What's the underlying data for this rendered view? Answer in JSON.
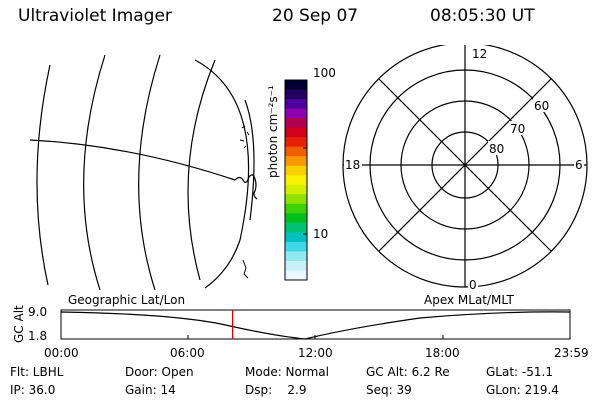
{
  "header": {
    "title": "Ultraviolet Imager",
    "date": "20 Sep 07",
    "time": "08:05:30 UT"
  },
  "colorbar": {
    "unit_label": "photon cm⁻²s⁻¹",
    "tick_labels": [
      "100",
      "10"
    ],
    "colors": [
      "#000030",
      "#200060",
      "#5000a0",
      "#9000b0",
      "#b00050",
      "#d00018",
      "#e82000",
      "#f06000",
      "#f89800",
      "#f8d000",
      "#f8f000",
      "#d0f000",
      "#90e000",
      "#40d000",
      "#00c020",
      "#00c070",
      "#00c0c0",
      "#40d8e8",
      "#90e8f0",
      "#c8f0f8",
      "#e8f8fc"
    ]
  },
  "polar": {
    "mlt_labels": {
      "top": "12",
      "right": "6",
      "bottom": "0",
      "left": "18"
    },
    "lat_labels": [
      "60",
      "70",
      "80"
    ]
  },
  "map_labels": {
    "left": "Geographic Lat/Lon",
    "right": "Apex MLat/MLT"
  },
  "altitude_plot": {
    "y_label": "GC Alt",
    "y_ticks": [
      "9.0",
      "1.8"
    ],
    "x_ticks": [
      "00:00",
      "06:00",
      "12:00",
      "18:00",
      "23:59"
    ],
    "marker_color": "#e00000",
    "current_time_hours": 8.09
  },
  "status": {
    "row1": [
      {
        "text": "Flt: LBHL"
      },
      {
        "text": "Door: Open"
      },
      {
        "text": "Mode: Normal"
      },
      {
        "text": "GC Alt: 6.2 Re"
      },
      {
        "text": "GLat: -51.1"
      }
    ],
    "row2": [
      {
        "text": "IP: 36.0"
      },
      {
        "text": "Gain: 14"
      },
      {
        "text": "Dsp:    2.9"
      },
      {
        "text": "Seq: 39"
      },
      {
        "text": "GLon: 219.4"
      }
    ]
  }
}
